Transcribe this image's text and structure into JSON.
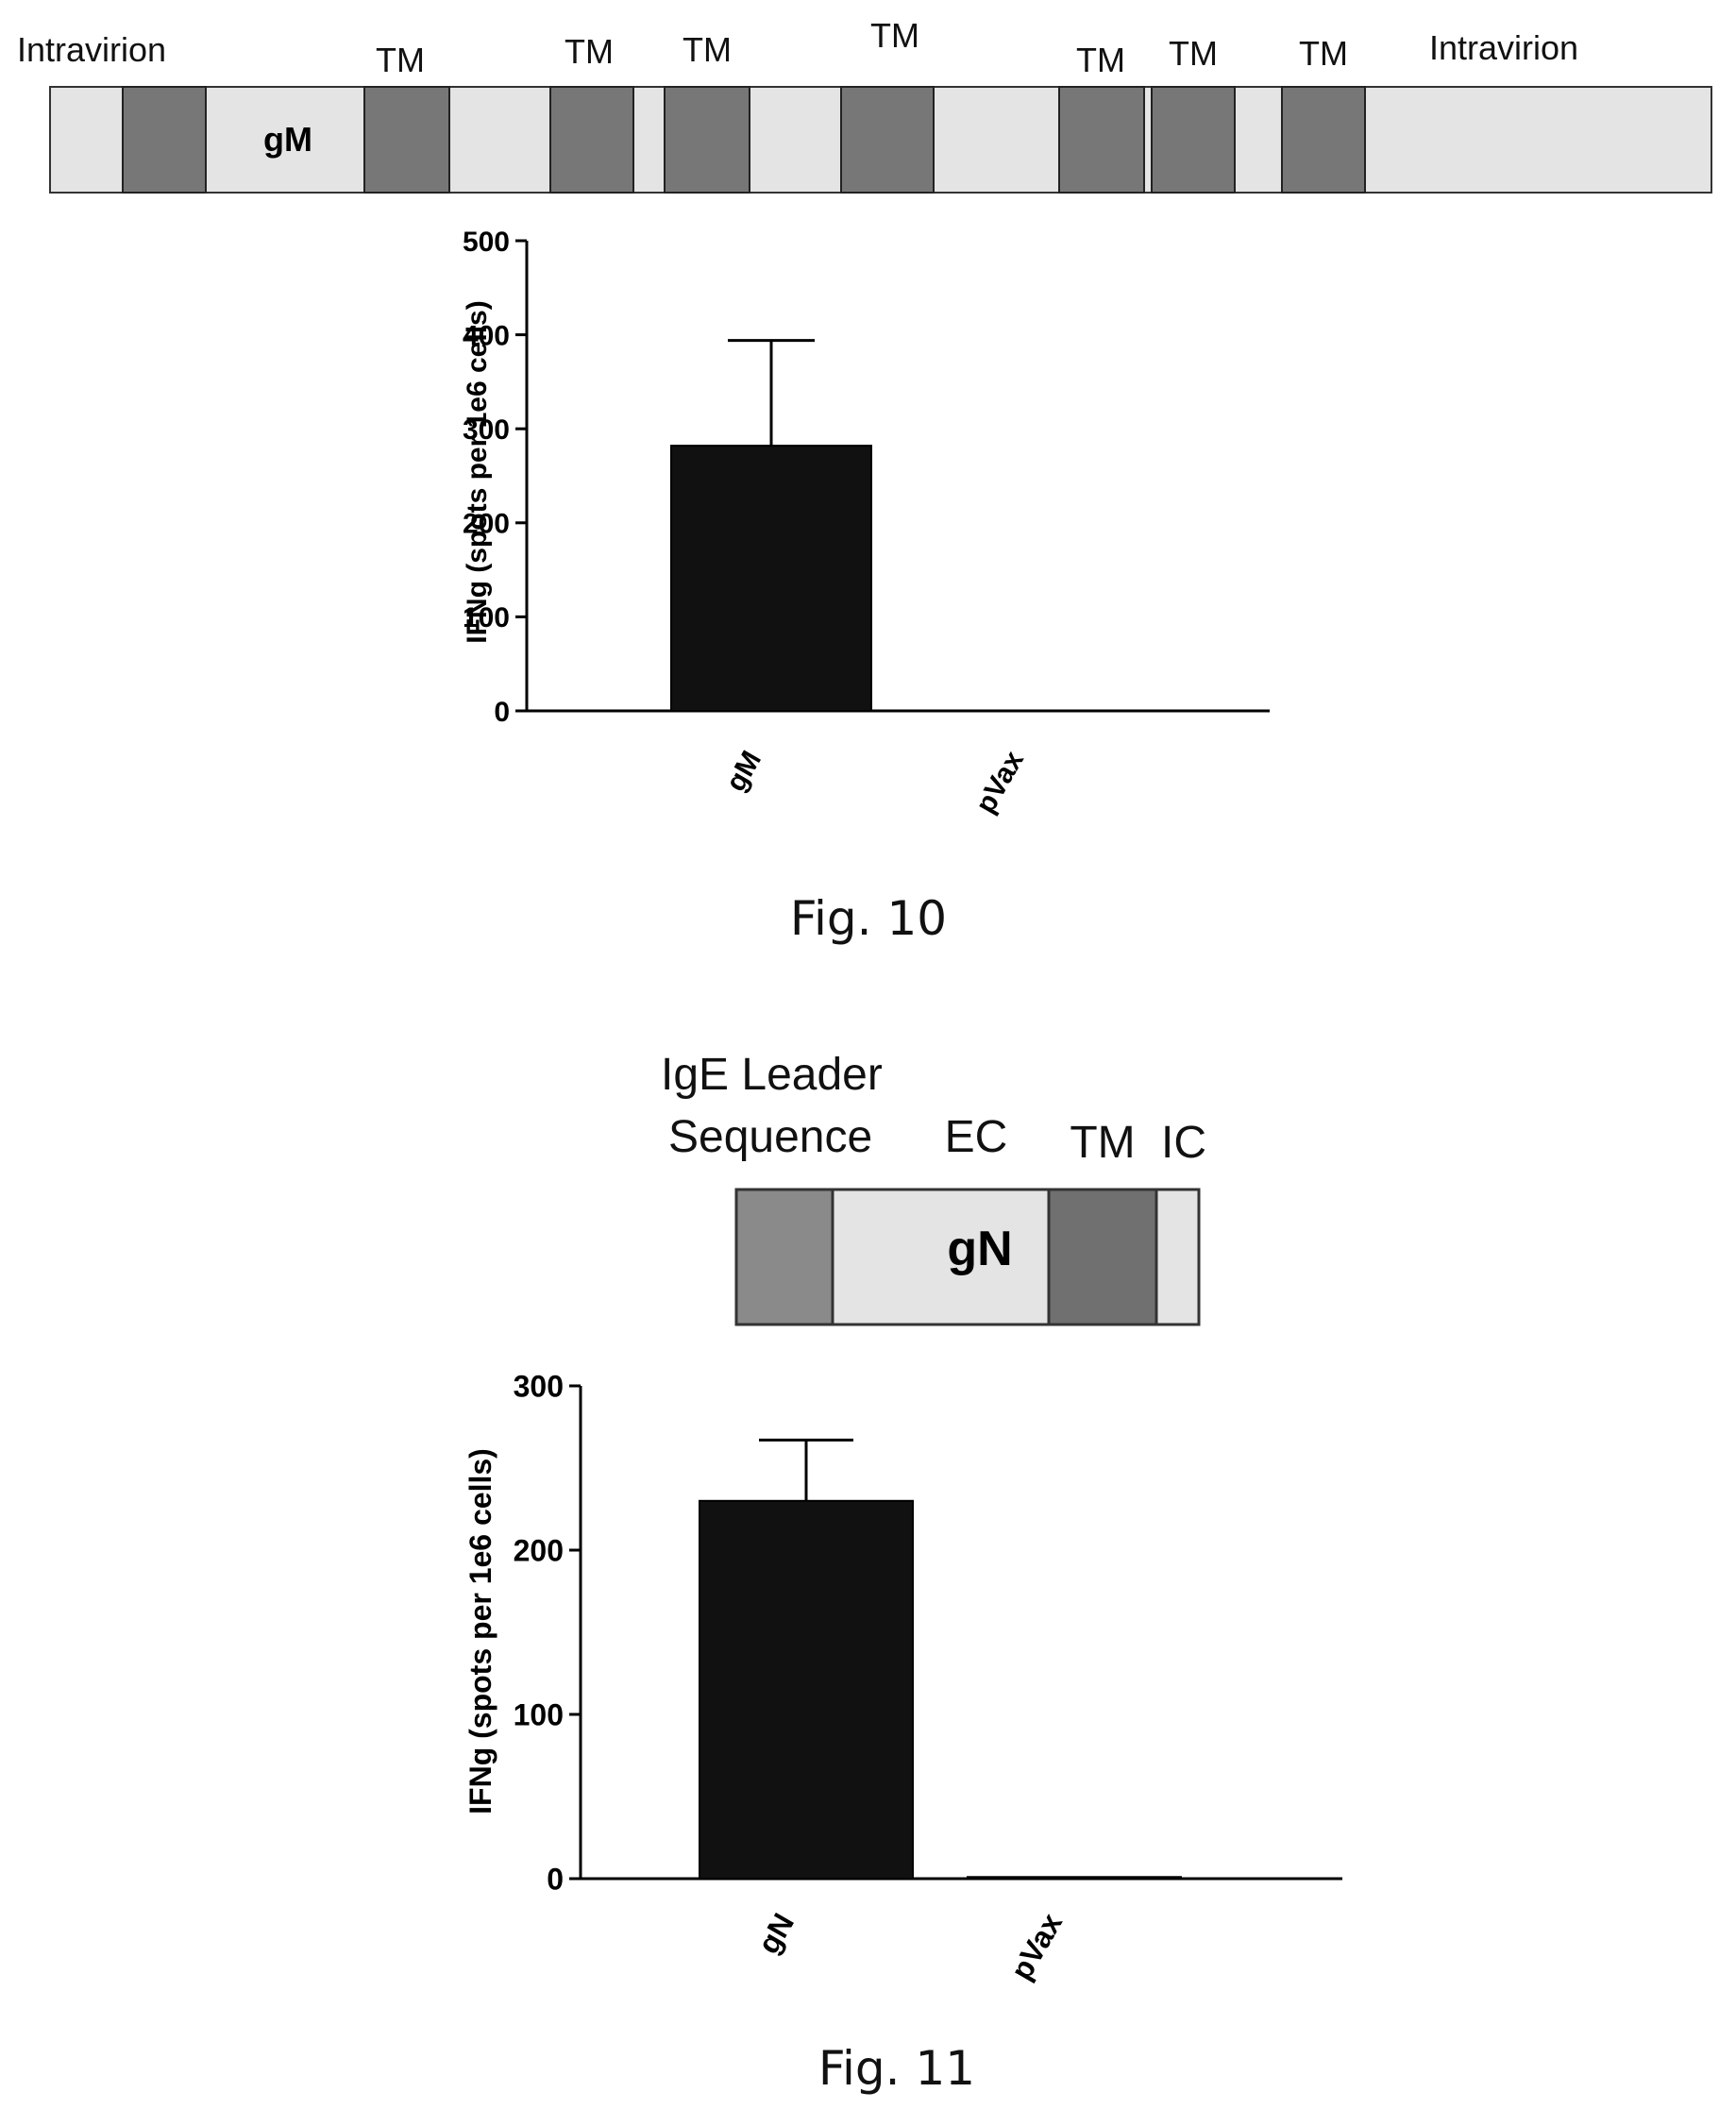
{
  "fig10": {
    "caption": "Fig. 10",
    "construct": {
      "name": "gM",
      "labels": [
        "Intravirion",
        "TM",
        "TM",
        "TM",
        "TM",
        "TM",
        "TM",
        "TM",
        "Intravirion"
      ],
      "colors": {
        "light": "#e4e4e4",
        "dark": "#777777"
      }
    }
  },
  "fig11": {
    "caption": "Fig. 11",
    "construct": {
      "name": "gN",
      "labels": [
        "IgE Leader",
        "Sequence",
        "EC",
        "TM",
        "IC"
      ],
      "colors": {
        "light": "#e4e4e4",
        "leader": "#8a8a8a",
        "dark": "#707070"
      }
    }
  },
  "chart_data": [
    {
      "type": "bar",
      "categories": [
        "gM",
        "pVax"
      ],
      "values": [
        282,
        0
      ],
      "error": [
        112,
        0
      ],
      "xlabel": "",
      "ylabel": "IFNg (spots per 1e6 cells)",
      "ylim": [
        0,
        500
      ],
      "yticks": [
        0,
        100,
        200,
        300,
        400,
        500
      ],
      "ytick_labels": [
        "0",
        "100",
        "200",
        "300",
        "400",
        "500"
      ],
      "bar_color": "#111111",
      "grid": false
    },
    {
      "type": "bar",
      "categories": [
        "gN",
        "pVax"
      ],
      "values": [
        230,
        1
      ],
      "error": [
        37,
        0
      ],
      "xlabel": "",
      "ylabel": "IFNg (spots per 1e6 cells)",
      "ylim": [
        0,
        300
      ],
      "yticks": [
        0,
        100,
        200,
        300
      ],
      "ytick_labels": [
        "0",
        "100",
        "200",
        "300"
      ],
      "bar_color": "#111111",
      "grid": false
    }
  ]
}
